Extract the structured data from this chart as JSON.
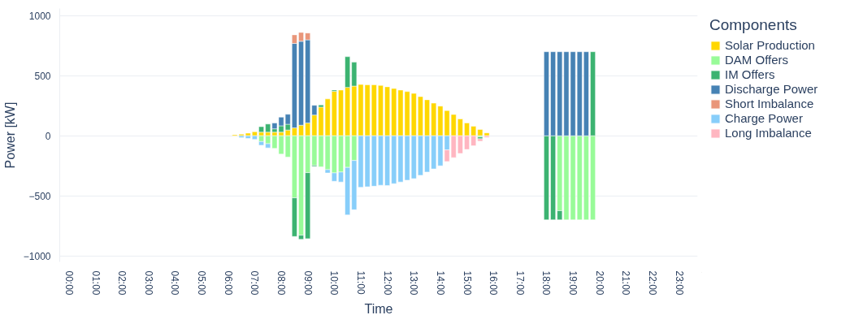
{
  "chart_data": {
    "type": "bar",
    "stacked": true,
    "xlabel": "Time",
    "ylabel": "Power [kW]",
    "legend_title": "Components",
    "legend": "right",
    "grid": "y",
    "x": [
      6.25,
      6.5,
      6.75,
      7,
      7.25,
      7.5,
      7.75,
      8,
      8.25,
      8.5,
      8.75,
      9,
      9.25,
      9.5,
      9.75,
      10,
      10.25,
      10.5,
      10.75,
      11,
      11.25,
      11.5,
      11.75,
      12,
      12.25,
      12.5,
      12.75,
      13,
      13.25,
      13.5,
      13.75,
      14,
      14.25,
      14.5,
      14.75,
      15,
      15.25,
      15.5,
      15.75,
      18,
      18.25,
      18.5,
      18.75,
      19,
      19.25,
      19.5,
      19.75
    ],
    "xlim": [
      -0.35,
      23.7
    ],
    "ylim": [
      -1050,
      1060
    ],
    "yticks": [
      -1000,
      -500,
      0,
      500,
      1000
    ],
    "xticks": [
      {
        "value": 0,
        "label": "00:00"
      },
      {
        "value": 1,
        "label": "01:00"
      },
      {
        "value": 2,
        "label": "02:00"
      },
      {
        "value": 3,
        "label": "03:00"
      },
      {
        "value": 4,
        "label": "04:00"
      },
      {
        "value": 5,
        "label": "05:00"
      },
      {
        "value": 6,
        "label": "06:00"
      },
      {
        "value": 7,
        "label": "07:00"
      },
      {
        "value": 8,
        "label": "08:00"
      },
      {
        "value": 9,
        "label": "09:00"
      },
      {
        "value": 10,
        "label": "10:00"
      },
      {
        "value": 11,
        "label": "11:00"
      },
      {
        "value": 12,
        "label": "12:00"
      },
      {
        "value": 13,
        "label": "13:00"
      },
      {
        "value": 14,
        "label": "14:00"
      },
      {
        "value": 15,
        "label": "15:00"
      },
      {
        "value": 16,
        "label": "16:00"
      },
      {
        "value": 17,
        "label": "17:00"
      },
      {
        "value": 18,
        "label": "18:00"
      },
      {
        "value": 19,
        "label": "19:00"
      },
      {
        "value": 20,
        "label": "20:00"
      },
      {
        "value": 21,
        "label": "21:00"
      },
      {
        "value": 22,
        "label": "22:00"
      },
      {
        "value": 23,
        "label": "23:00"
      }
    ],
    "series": [
      {
        "name": "Solar Production",
        "color": "#ffd700",
        "values": [
          8,
          13,
          22,
          33,
          30,
          30,
          30,
          30,
          48,
          66,
          88,
          107,
          173,
          239,
          307,
          370,
          381,
          403,
          414,
          427,
          425,
          425,
          420,
          408,
          394,
          381,
          368,
          353,
          326,
          300,
          272,
          247,
          210,
          177,
          140,
          107,
          79,
          53,
          24,
          null,
          null,
          null,
          null,
          null,
          null,
          null,
          null
        ]
      },
      {
        "name": "DAM Offers",
        "color": "#98fb98",
        "values": [
          null,
          null,
          null,
          null,
          -48,
          -66,
          -105,
          -153,
          -177,
          -517,
          -828,
          -307,
          -247,
          -258,
          -282,
          -309,
          -302,
          -263,
          -206,
          null,
          null,
          null,
          null,
          null,
          null,
          null,
          null,
          null,
          null,
          null,
          null,
          null,
          null,
          null,
          null,
          null,
          null,
          -10,
          null,
          null,
          null,
          -624,
          -700,
          -700,
          -700,
          -700,
          -700
        ]
      },
      {
        "name": "IM Offers",
        "color": "#3cb371",
        "values": [
          null,
          null,
          null,
          null,
          46,
          68,
          28,
          53,
          48,
          -322,
          -35,
          -550,
          -9,
          18,
          null,
          11,
          null,
          256,
          199,
          null,
          null,
          null,
          null,
          null,
          null,
          null,
          null,
          null,
          null,
          null,
          null,
          null,
          null,
          null,
          null,
          null,
          null,
          -15,
          null,
          -700,
          -700,
          -76,
          null,
          null,
          null,
          null,
          700
        ]
      },
      {
        "name": "Discharge Power",
        "color": "#4682b4",
        "values": [
          null,
          null,
          null,
          null,
          null,
          null,
          48,
          72,
          83,
          703,
          699,
          692,
          81,
          null,
          null,
          null,
          null,
          null,
          null,
          null,
          null,
          null,
          null,
          null,
          null,
          null,
          null,
          null,
          null,
          null,
          null,
          null,
          null,
          null,
          null,
          null,
          null,
          null,
          null,
          700,
          700,
          700,
          700,
          700,
          700,
          700,
          null
        ]
      },
      {
        "name": "Short Imbalance",
        "color": "#e9967a",
        "values": [
          null,
          null,
          null,
          null,
          null,
          null,
          null,
          null,
          null,
          72,
          74,
          57,
          null,
          null,
          null,
          null,
          null,
          null,
          null,
          null,
          null,
          null,
          null,
          null,
          null,
          null,
          null,
          null,
          null,
          null,
          null,
          null,
          null,
          null,
          null,
          null,
          null,
          null,
          null,
          null,
          null,
          null,
          null,
          null,
          null,
          null,
          null
        ]
      },
      {
        "name": "Charge Power",
        "color": "#87cefa",
        "values": [
          null,
          -15,
          -22,
          -30,
          -31,
          -35,
          null,
          null,
          null,
          null,
          null,
          null,
          null,
          null,
          -28,
          -70,
          -83,
          -396,
          -410,
          -429,
          -425,
          -420,
          -412,
          -414,
          -399,
          -385,
          -370,
          -357,
          -329,
          -302,
          -276,
          -250,
          -118,
          null,
          null,
          null,
          null,
          null,
          null,
          null,
          null,
          null,
          null,
          null,
          null,
          null,
          null
        ]
      },
      {
        "name": "Long Imbalance",
        "color": "#ffb6c1",
        "values": [
          null,
          null,
          null,
          null,
          null,
          null,
          null,
          null,
          null,
          null,
          null,
          null,
          null,
          null,
          null,
          null,
          null,
          null,
          null,
          null,
          null,
          null,
          null,
          null,
          null,
          null,
          null,
          null,
          null,
          null,
          null,
          null,
          -96,
          -182,
          -147,
          -114,
          -83,
          -20,
          -13,
          null,
          null,
          null,
          null,
          null,
          null,
          null,
          null
        ]
      }
    ]
  }
}
